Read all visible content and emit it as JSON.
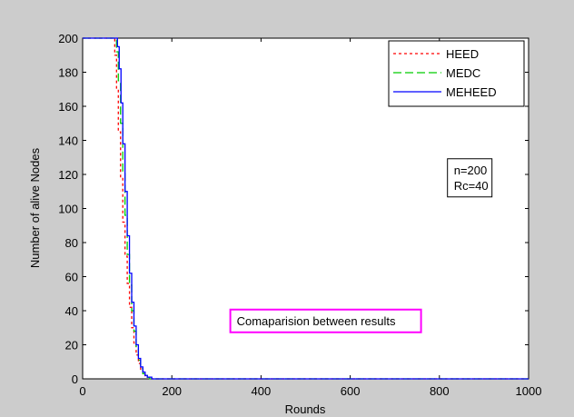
{
  "chart_data": {
    "type": "line",
    "title": "",
    "xlabel": "Rounds",
    "ylabel": "Number of alive Nodes",
    "xlim": [
      0,
      1000
    ],
    "ylim": [
      0,
      200
    ],
    "xticks": [
      0,
      200,
      400,
      600,
      800,
      1000
    ],
    "yticks": [
      0,
      20,
      40,
      60,
      80,
      100,
      120,
      140,
      160,
      180,
      200
    ],
    "grid": false,
    "legend_position": "top-right",
    "series": [
      {
        "name": "HEED",
        "color": "#ff0000",
        "style": "dotted",
        "x": [
          0,
          68,
          72,
          76,
          80,
          85,
          90,
          95,
          100,
          105,
          110,
          115,
          120,
          125,
          130,
          135,
          140,
          145,
          150,
          155,
          160,
          1000
        ],
        "y": [
          200,
          200,
          190,
          170,
          145,
          118,
          92,
          72,
          56,
          42,
          30,
          21,
          14,
          9,
          5,
          3,
          1,
          1,
          0,
          0,
          0,
          0
        ]
      },
      {
        "name": "MEDC",
        "color": "#00cc00",
        "style": "dashed",
        "x": [
          0,
          72,
          76,
          80,
          85,
          90,
          95,
          100,
          105,
          110,
          115,
          120,
          125,
          130,
          135,
          140,
          145,
          150,
          155,
          160,
          1000
        ],
        "y": [
          200,
          200,
          192,
          175,
          150,
          122,
          96,
          73,
          55,
          40,
          28,
          18,
          11,
          6,
          3,
          2,
          1,
          0,
          0,
          0,
          0
        ]
      },
      {
        "name": "MEHEED",
        "color": "#0000ff",
        "style": "solid",
        "x": [
          0,
          74,
          78,
          82,
          86,
          90,
          95,
          100,
          105,
          110,
          115,
          120,
          125,
          130,
          135,
          140,
          145,
          150,
          155,
          160,
          1000
        ],
        "y": [
          200,
          200,
          195,
          182,
          162,
          138,
          110,
          84,
          62,
          45,
          31,
          20,
          12,
          7,
          4,
          2,
          1,
          1,
          0,
          0,
          0
        ]
      }
    ],
    "annotations": [
      {
        "lines": [
          "n=200",
          "Rc=40"
        ],
        "x": 868,
        "y": 118
      },
      {
        "lines": [
          "Comaparision between results"
        ],
        "x": 545,
        "y": 34,
        "border_color": "#ff00ff"
      }
    ]
  }
}
